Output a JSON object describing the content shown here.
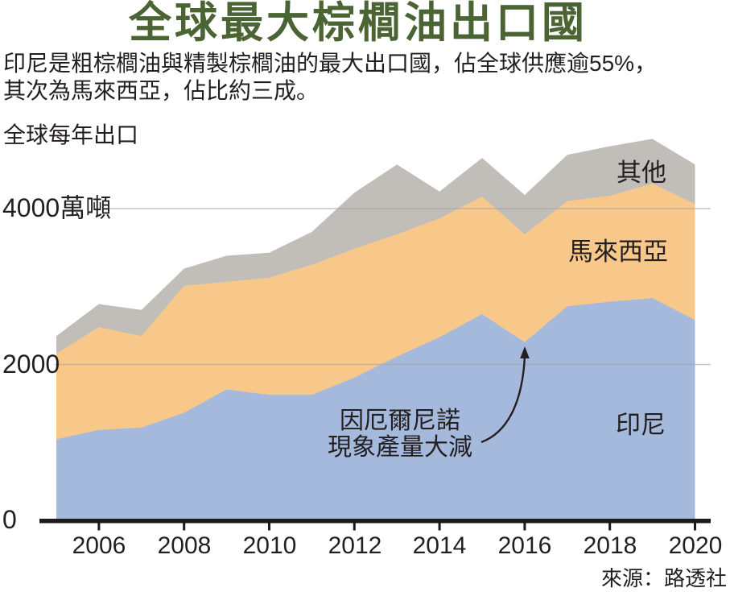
{
  "title": "全球最大棕櫚油出口國",
  "subtitle": {
    "line1": "印尼是粗棕櫚油與精製棕櫚油的最大出口國，佔全球供應逾55%，",
    "line2": "其次為馬來西亞，佔比約三成。"
  },
  "unit_label": "全球每年出口",
  "annotation": {
    "line1": "因厄爾尼諾",
    "line2": "現象產量大減"
  },
  "source": "來源：路透社",
  "colors": {
    "title_green": "#4a6433",
    "indonesia_blue": "#a4b9dc",
    "malaysia_orange": "#f8c88a",
    "others_gray": "#c1bdb9",
    "axis_black": "#1a1a1a",
    "gridline_gray": "#a9a5a1",
    "text_black": "#231f20"
  },
  "chart_data": {
    "type": "area",
    "stacked": true,
    "x": [
      2005,
      2006,
      2007,
      2008,
      2009,
      2010,
      2011,
      2012,
      2013,
      2014,
      2015,
      2016,
      2017,
      2018,
      2019,
      2020
    ],
    "series": [
      {
        "id": "indonesia",
        "name": "印尼",
        "color": "#a4b9dc",
        "values": [
          1040,
          1160,
          1190,
          1380,
          1680,
          1610,
          1610,
          1830,
          2100,
          2350,
          2645,
          2285,
          2745,
          2805,
          2850,
          2570
        ]
      },
      {
        "id": "malaysia",
        "name": "馬來西亞",
        "color": "#f8c88a",
        "values": [
          1100,
          1320,
          1175,
          1630,
          1380,
          1505,
          1670,
          1655,
          1570,
          1525,
          1510,
          1385,
          1350,
          1360,
          1470,
          1490
        ]
      },
      {
        "id": "others",
        "name": "其他",
        "color": "#c1bdb9",
        "values": [
          225,
          295,
          335,
          220,
          335,
          320,
          420,
          720,
          895,
          345,
          495,
          505,
          595,
          635,
          575,
          505
        ]
      }
    ],
    "y_ticks": [
      {
        "value": 4000,
        "label": "4000萬噸"
      },
      {
        "value": 2000,
        "label": "2000"
      },
      {
        "value": 0,
        "label": "0"
      }
    ],
    "x_tick_labels": [
      "2006",
      "2008",
      "2010",
      "2012",
      "2014",
      "2016",
      "2018",
      "2020"
    ],
    "ylim": [
      0,
      5000
    ],
    "grid": "horizontal-only",
    "legend_position": "inline-on-areas",
    "annotation_target": {
      "x": 2016,
      "series": "indonesia",
      "value": 2285
    }
  }
}
